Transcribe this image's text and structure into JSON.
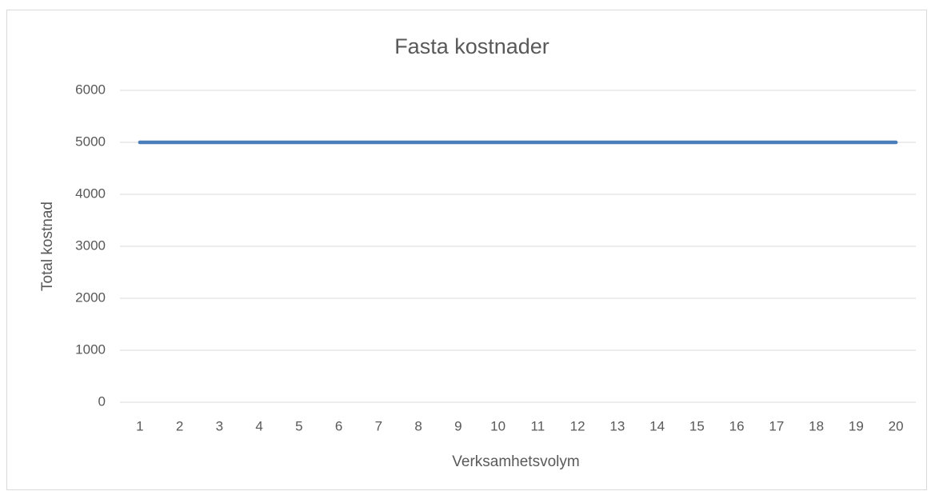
{
  "chart_data": {
    "type": "line",
    "title": "Fasta kostnader",
    "x_label": "Verksamhetsvolym",
    "y_label": "Total kostnad",
    "categories": [
      "1",
      "2",
      "3",
      "4",
      "5",
      "6",
      "7",
      "8",
      "9",
      "10",
      "11",
      "12",
      "13",
      "14",
      "15",
      "16",
      "17",
      "18",
      "19",
      "20"
    ],
    "series": [
      {
        "name": "Fasta kostnader",
        "color": "#4a7ebb",
        "values": [
          5000,
          5000,
          5000,
          5000,
          5000,
          5000,
          5000,
          5000,
          5000,
          5000,
          5000,
          5000,
          5000,
          5000,
          5000,
          5000,
          5000,
          5000,
          5000,
          5000
        ]
      }
    ],
    "ylim": [
      0,
      6000
    ],
    "yticks": [
      0,
      1000,
      2000,
      3000,
      4000,
      5000,
      6000
    ],
    "grid": true
  }
}
